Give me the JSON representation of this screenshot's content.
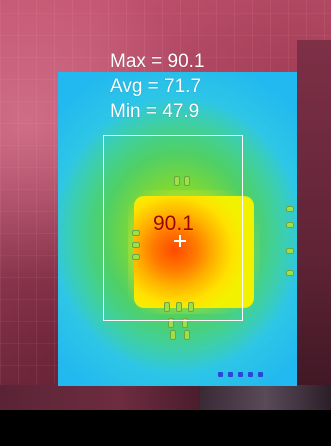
{
  "overlay": {
    "max_text": "Max = 90.1",
    "avg_text": "Avg = 71.7",
    "min_text": "Min = 47.9",
    "hotspot_text": "90.1"
  },
  "measurements": {
    "max": 90.1,
    "avg": 71.7,
    "min": 47.9,
    "hotspot": 90.1
  },
  "colors": {
    "scene_background": "#b84c63",
    "thermal_cold": "#22b8f0",
    "thermal_mid": "#36d9c4",
    "thermal_warm": "#7fd834",
    "thermal_hot": "#ff4a00",
    "overlay_text": "#ffffff",
    "hotspot_text": "#a00000",
    "roi_outline": "#ffffff"
  }
}
